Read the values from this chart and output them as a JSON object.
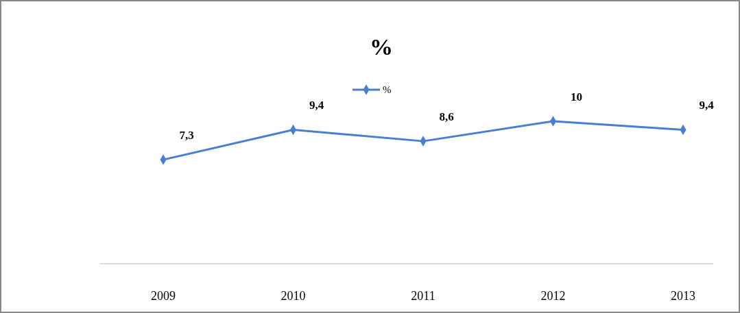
{
  "chart_data": {
    "type": "line",
    "title": "%",
    "categories": [
      "2009",
      "2010",
      "2011",
      "2012",
      "2013"
    ],
    "series": [
      {
        "name": "%",
        "color": "#4a7fd0",
        "values": [
          7.3,
          9.4,
          8.6,
          10,
          9.4
        ],
        "value_labels": [
          "7,3",
          "9,4",
          "8,6",
          "10",
          "9,4"
        ]
      }
    ],
    "legend": "top",
    "marker": "diamond",
    "line_style": "solid"
  }
}
